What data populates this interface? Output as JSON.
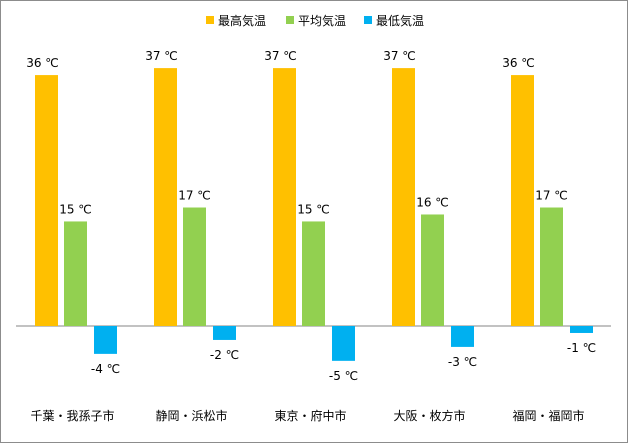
{
  "chart_data": {
    "type": "bar",
    "title": "",
    "xlabel": "",
    "ylabel": "",
    "categories": [
      "千葉・我孫子市",
      "静岡・浜松市",
      "東京・府中市",
      "大阪・枚方市",
      "福岡・福岡市"
    ],
    "series": [
      {
        "name": "最高気温",
        "values": [
          36,
          37,
          37,
          37,
          36
        ],
        "color": "#FFC000"
      },
      {
        "name": "平均気温",
        "values": [
          15,
          17,
          15,
          16,
          17
        ],
        "color": "#92D050"
      },
      {
        "name": "最低気温",
        "values": [
          -4,
          -2,
          -5,
          -3,
          -1
        ],
        "color": "#00B0F0"
      }
    ],
    "value_labels": [
      [
        "36 ℃",
        "37 ℃",
        "37 ℃",
        "37 ℃",
        "36 ℃"
      ],
      [
        "15 ℃",
        "17 ℃",
        "15 ℃",
        "16 ℃",
        "17 ℃"
      ],
      [
        "-4 ℃",
        "-2 ℃",
        "-5 ℃",
        "-3 ℃",
        "-1 ℃"
      ]
    ],
    "ylim": [
      -6,
      37.5
    ],
    "grid": false,
    "legend": "top-center"
  }
}
